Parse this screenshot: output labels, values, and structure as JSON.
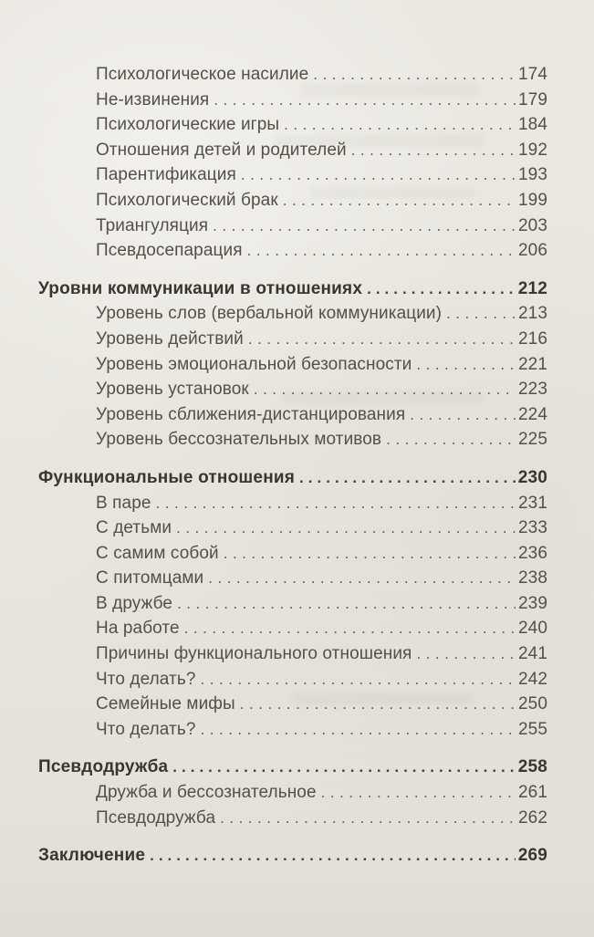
{
  "page": {
    "paper_color": "#e9e6df",
    "text_color": "#544f48",
    "heading_color": "#3a362f"
  },
  "toc": {
    "entries": [
      {
        "label": "Психологическое насилие",
        "page": "174",
        "level": "sub"
      },
      {
        "label": "Не-извинения",
        "page": "179",
        "level": "sub"
      },
      {
        "label": "Психологические игры",
        "page": "184",
        "level": "sub"
      },
      {
        "label": "Отношения детей и родителей",
        "page": "192",
        "level": "sub"
      },
      {
        "label": "Парентификация",
        "page": "193",
        "level": "sub"
      },
      {
        "label": "Психологический брак",
        "page": "199",
        "level": "sub"
      },
      {
        "label": "Триангуляция",
        "page": "203",
        "level": "sub"
      },
      {
        "label": "Псевдосепарация",
        "page": "206",
        "level": "sub"
      },
      {
        "label": "Уровни коммуникации в отношениях",
        "page": "212",
        "level": "section"
      },
      {
        "label": "Уровень слов (вербальной коммуникации)",
        "page": "213",
        "level": "sub"
      },
      {
        "label": "Уровень действий",
        "page": "216",
        "level": "sub"
      },
      {
        "label": "Уровень эмоциональной безопасности",
        "page": "221",
        "level": "sub"
      },
      {
        "label": "Уровень установок",
        "page": "223",
        "level": "sub"
      },
      {
        "label": "Уровень сближения-дистанцирования",
        "page": "224",
        "level": "sub"
      },
      {
        "label": "Уровень бессознательных мотивов",
        "page": "225",
        "level": "sub"
      },
      {
        "label": "Функциональные отношения",
        "page": "230",
        "level": "section"
      },
      {
        "label": "В паре",
        "page": "231",
        "level": "sub"
      },
      {
        "label": "С детьми",
        "page": "233",
        "level": "sub"
      },
      {
        "label": "С самим собой",
        "page": "236",
        "level": "sub"
      },
      {
        "label": "С питомцами",
        "page": "238",
        "level": "sub"
      },
      {
        "label": "В дружбе",
        "page": "239",
        "level": "sub"
      },
      {
        "label": "На работе",
        "page": "240",
        "level": "sub"
      },
      {
        "label": "Причины функционального отношения",
        "page": "241",
        "level": "sub"
      },
      {
        "label": "Что делать?",
        "page": "242",
        "level": "sub"
      },
      {
        "label": "Семейные мифы",
        "page": "250",
        "level": "sub"
      },
      {
        "label": "Что делать?",
        "page": "255",
        "level": "sub"
      },
      {
        "label": "Псевдодружба",
        "page": "258",
        "level": "section"
      },
      {
        "label": "Дружба и бессознательное",
        "page": "261",
        "level": "sub"
      },
      {
        "label": "Псевдодружба",
        "page": "262",
        "level": "sub"
      },
      {
        "label": "Заключение",
        "page": "269",
        "level": "section"
      }
    ]
  }
}
